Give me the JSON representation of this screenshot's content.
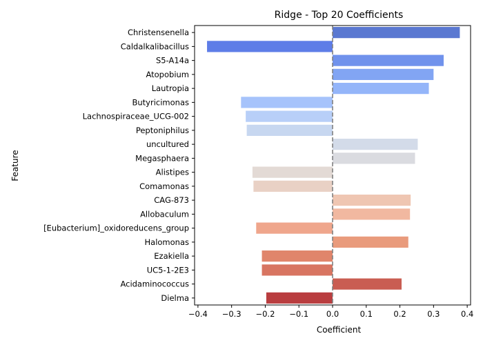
{
  "chart_data": {
    "type": "bar",
    "orientation": "horizontal",
    "title": "Ridge - Top 20 Coefficients",
    "xlabel": "Coefficient",
    "ylabel": "Feature",
    "xlim": [
      -0.41,
      0.41
    ],
    "xticks": [
      -0.4,
      -0.3,
      -0.2,
      -0.1,
      0.0,
      0.1,
      0.2,
      0.3,
      0.4
    ],
    "xtick_labels": [
      "−0.4",
      "−0.3",
      "−0.2",
      "−0.1",
      "0.0",
      "0.1",
      "0.2",
      "0.3",
      "0.4"
    ],
    "zero_line": {
      "value": 0,
      "style": "dashed",
      "color": "#808080"
    },
    "grid": false,
    "categories": [
      "Christensenella",
      "Caldalkalibacillus",
      "S5-A14a",
      "Atopobium",
      "Lautropia",
      "Butyricimonas",
      "Lachnospiraceae_UCG-002",
      "Peptoniphilus",
      "uncultured",
      "Megasphaera",
      "Alistipes",
      "Comamonas",
      "CAG-873",
      "Allobaculum",
      "[Eubacterium]_oxidoreducens_group",
      "Halomonas",
      "Ezakiella",
      "UC5-1-2E3",
      "Acidaminococcus",
      "Dielma"
    ],
    "values": [
      0.378,
      -0.373,
      0.33,
      0.3,
      0.286,
      -0.272,
      -0.258,
      -0.255,
      0.253,
      0.245,
      -0.238,
      -0.235,
      0.232,
      0.23,
      -0.227,
      0.225,
      -0.21,
      -0.21,
      0.205,
      -0.197
    ],
    "colors": [
      "#5a78d1",
      "#5e7de7",
      "#7092ec",
      "#82a5f3",
      "#94b5f9",
      "#a6c3fb",
      "#b8cff8",
      "#c7d7f0",
      "#d3dbe9",
      "#dadbe0",
      "#e3dad5",
      "#e9d1c5",
      "#efc6b2",
      "#f1b8a0",
      "#efa68c",
      "#e99b7c",
      "#e0856b",
      "#d87561",
      "#c95d52",
      "#b93d3f"
    ]
  }
}
